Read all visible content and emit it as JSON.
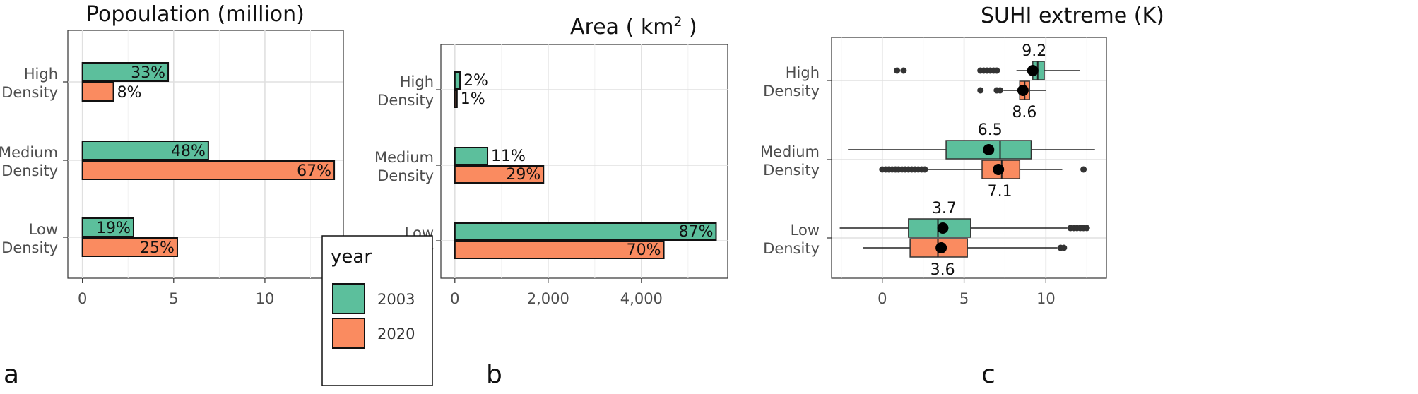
{
  "colors": {
    "2003": "#5cbf9c",
    "2020": "#fa8b60",
    "border": "#111111",
    "grid": "#e3e3e3",
    "point": "#333333",
    "mean": "#000000"
  },
  "panel_letters": [
    "a",
    "b",
    "c"
  ],
  "legend": {
    "title": "year",
    "items": [
      {
        "label": "2003",
        "color": "#5cbf9c"
      },
      {
        "label": "2020",
        "color": "#fa8b60"
      }
    ]
  },
  "chart_data": [
    {
      "type": "bar",
      "title": "Popoulation (million)",
      "panel": "a",
      "orientation": "horizontal",
      "categories": [
        [
          "High",
          "Density"
        ],
        [
          "Medium",
          "Density"
        ],
        [
          "Low",
          "Density"
        ]
      ],
      "series": [
        {
          "name": "2003",
          "values": [
            4.7,
            6.9,
            2.8
          ],
          "labels": [
            "33%",
            "48%",
            "19%"
          ]
        },
        {
          "name": "2020",
          "values": [
            1.7,
            13.8,
            5.2
          ],
          "labels": [
            "8%",
            "67%",
            "25%"
          ]
        }
      ],
      "xticks": [
        0,
        5,
        10
      ],
      "xtick_labels": [
        "0",
        "5",
        "10"
      ],
      "xlim": [
        -0.8,
        14.3
      ],
      "grid": true,
      "legend_position": "bottom-right (inside)"
    },
    {
      "type": "bar",
      "title_parts": {
        "main": "Area ( km",
        "sup": "2",
        "tail": " )"
      },
      "panel": "b",
      "orientation": "horizontal",
      "categories": [
        [
          "High",
          "Density"
        ],
        [
          "Medium",
          "Density"
        ],
        [
          "Low",
          "Density"
        ]
      ],
      "series": [
        {
          "name": "2003",
          "values": [
            110,
            700,
            5600
          ],
          "labels": [
            "2%",
            "11%",
            "87%"
          ]
        },
        {
          "name": "2020",
          "values": [
            40,
            1900,
            4480
          ],
          "labels": [
            "1%",
            "29%",
            "70%"
          ]
        }
      ],
      "xticks": [
        0,
        2000,
        4000
      ],
      "xtick_labels": [
        "0",
        "2,000",
        "4,000"
      ],
      "xlim": [
        -300,
        5850
      ],
      "grid": true
    },
    {
      "type": "boxplot",
      "title": "SUHI extreme (K)",
      "panel": "c",
      "orientation": "horizontal",
      "categories": [
        [
          "High",
          "Density"
        ],
        [
          "Medium",
          "Density"
        ],
        [
          "Low",
          "Density"
        ]
      ],
      "series": [
        {
          "name": "2003",
          "boxes": [
            {
              "whisker_low": 8.2,
              "q1": 9.2,
              "median": 9.5,
              "q3": 9.9,
              "whisker_high": 12.1,
              "mean": 9.2,
              "mean_label": "9.2",
              "outliers": [
                0.9,
                1.3,
                6.0,
                6.2,
                6.4,
                6.6,
                6.8,
                7.0
              ]
            },
            {
              "whisker_low": -2.1,
              "q1": 3.9,
              "median": 7.2,
              "q3": 9.1,
              "whisker_high": 13.0,
              "mean": 6.5,
              "mean_label": "6.5",
              "outliers": []
            },
            {
              "whisker_low": -2.6,
              "q1": 1.6,
              "median": 3.4,
              "q3": 5.4,
              "whisker_high": 11.3,
              "mean": 3.7,
              "mean_label": "3.7",
              "outliers": [
                11.5,
                11.7,
                11.9,
                12.1,
                12.3,
                12.5
              ]
            }
          ]
        },
        {
          "name": "2020",
          "boxes": [
            {
              "whisker_low": 7.4,
              "q1": 8.4,
              "median": 8.7,
              "q3": 9.0,
              "whisker_high": 10.0,
              "mean": 8.6,
              "mean_label": "8.6",
              "outliers": [
                6.0,
                7.0,
                7.2
              ]
            },
            {
              "whisker_low": 0.0,
              "q1": 6.1,
              "median": 7.3,
              "q3": 8.4,
              "whisker_high": 11.0,
              "mean": 7.1,
              "mean_label": "7.1",
              "outliers": [
                0.0,
                0.2,
                0.4,
                0.6,
                0.8,
                1.0,
                1.2,
                1.4,
                1.6,
                1.8,
                2.0,
                2.2,
                2.4,
                2.6,
                12.3
              ]
            },
            {
              "whisker_low": -1.2,
              "q1": 1.7,
              "median": 3.4,
              "q3": 5.2,
              "whisker_high": 10.7,
              "mean": 3.6,
              "mean_label": "3.6",
              "outliers": [
                10.9,
                11.1
              ]
            }
          ]
        }
      ],
      "xticks": [
        0,
        5,
        10
      ],
      "xtick_labels": [
        "0",
        "5",
        "10"
      ],
      "xlim": [
        -3.1,
        13.7
      ],
      "grid": true
    }
  ]
}
